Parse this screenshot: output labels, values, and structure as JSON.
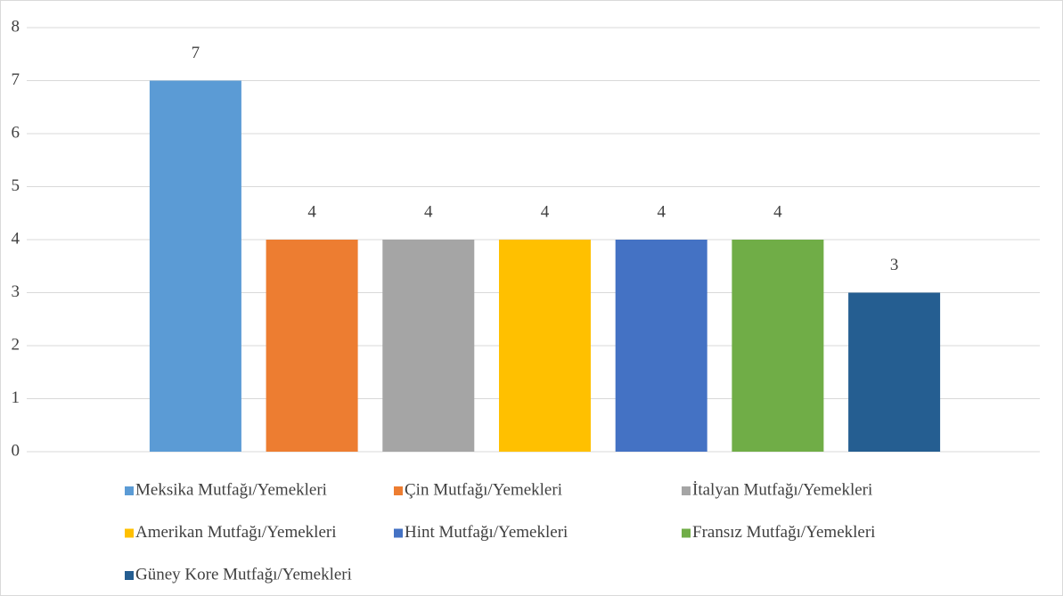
{
  "chart_data": {
    "type": "bar",
    "series": [
      {
        "name": "Meksika Mutfağı/Yemekleri",
        "color": "#5b9bd5",
        "values": [
          7
        ]
      },
      {
        "name": "Çin Mutfağı/Yemekleri",
        "color": "#ed7d31",
        "values": [
          4
        ]
      },
      {
        "name": "İtalyan Mutfağı/Yemekleri",
        "color": "#a5a5a5",
        "values": [
          4
        ]
      },
      {
        "name": "Amerikan Mutfağı/Yemekleri",
        "color": "#ffc000",
        "values": [
          4
        ]
      },
      {
        "name": "Hint Mutfağı/Yemekleri",
        "color": "#4472c4",
        "values": [
          4
        ]
      },
      {
        "name": "Fransız Mutfağı/Yemekleri",
        "color": "#70ad47",
        "values": [
          4
        ]
      },
      {
        "name": "Güney Kore Mutfağı/Yemekleri",
        "color": "#255e91",
        "values": [
          3
        ]
      }
    ],
    "ylim": [
      0,
      8
    ],
    "yticks": [
      0,
      1,
      2,
      3,
      4,
      5,
      6,
      7,
      8
    ],
    "grid": true,
    "legend": "bottom"
  }
}
